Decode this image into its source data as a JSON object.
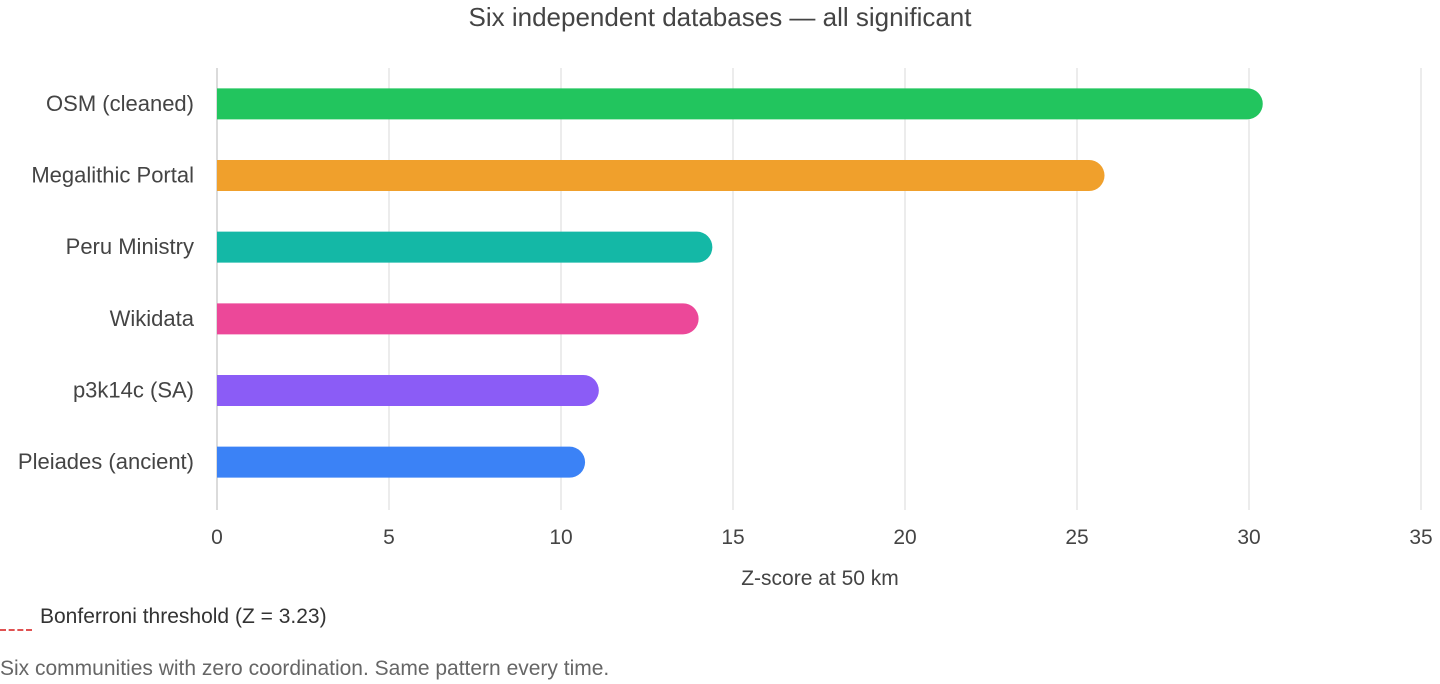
{
  "chart_data": {
    "type": "bar",
    "orientation": "horizontal",
    "title": "Six independent databases — all significant",
    "xlabel": "Z-score at 50 km",
    "ylabel": "",
    "xlim": [
      0,
      35
    ],
    "x_ticks": [
      0,
      5,
      10,
      15,
      20,
      25,
      30,
      35
    ],
    "grid": true,
    "categories": [
      "OSM (cleaned)",
      "Megalithic Portal",
      "Peru Ministry",
      "Wikidata",
      "p3k14c (SA)",
      "Pleiades (ancient)"
    ],
    "values": [
      30.4,
      25.8,
      14.4,
      14.0,
      11.1,
      10.7
    ],
    "colors": [
      "#22c55e",
      "#f0a02c",
      "#14b8a6",
      "#ec4899",
      "#8b5cf6",
      "#3b82f6"
    ],
    "threshold": {
      "label": "Bonferroni threshold (Z = 3.23)",
      "value": 3.23,
      "color": "#e05252"
    }
  },
  "caption": "Six communities with zero coordination. Same pattern every time."
}
